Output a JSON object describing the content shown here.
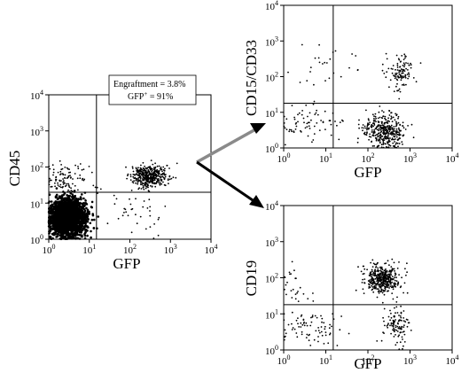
{
  "page_title": "",
  "colors": {
    "ink": "#000000",
    "background": "#ffffff",
    "arrow_main": "#000000",
    "arrow_upper": "#8a8a8a"
  },
  "annotations": {
    "engraftment": "Engraftment = 3.8%",
    "gfp_positive_prefix": "GFP",
    "gfp_positive_sup": "+",
    "gfp_positive_suffix": " = 91%"
  },
  "chart_data": [
    {
      "type": "scatter",
      "id": "cd45-vs-gfp",
      "title": "",
      "xlabel": "GFP",
      "ylabel": "CD45",
      "xscale": "log",
      "yscale": "log",
      "xlim": [
        1,
        10000
      ],
      "ylim": [
        1,
        10000
      ],
      "x_ticks": [
        1,
        10,
        100,
        1000,
        10000
      ],
      "y_ticks": [
        1,
        10,
        100,
        1000,
        10000
      ],
      "gate": {
        "x": 15,
        "y": 20
      },
      "annotation": [
        "Engraftment = 3.8%",
        "GFP+ = 91%"
      ],
      "populations": [
        {
          "label": "GFP- CD45-",
          "x_center": 3,
          "y_center": 4,
          "x_spread_decades": 0.22,
          "y_spread_decades": 0.26,
          "n": 2200
        },
        {
          "label": "GFP+ CD45+",
          "x_center": 300,
          "y_center": 55,
          "x_spread_decades": 0.22,
          "y_spread_decades": 0.15,
          "n": 420
        },
        {
          "label": "GFP- CD45+",
          "x_center": 3,
          "y_center": 45,
          "x_spread_decades": 0.3,
          "y_spread_decades": 0.22,
          "n": 110
        },
        {
          "label": "GFP+ CD45- scatter",
          "x_center": 150,
          "y_center": 5,
          "x_spread_decades": 0.45,
          "y_spread_decades": 0.35,
          "n": 35
        }
      ]
    },
    {
      "type": "scatter",
      "id": "cd15cd33-vs-gfp",
      "title": "",
      "xlabel": "GFP",
      "ylabel": "CD15/CD33",
      "xscale": "log",
      "yscale": "log",
      "xlim": [
        1,
        10000
      ],
      "ylim": [
        1,
        10000
      ],
      "x_ticks": [
        1,
        10,
        100,
        1000,
        10000
      ],
      "y_ticks": [
        1,
        10,
        100,
        1000,
        10000
      ],
      "gate": {
        "x": 15,
        "y": 18
      },
      "populations": [
        {
          "label": "GFP+ CD15/CD33-",
          "x_center": 250,
          "y_center": 3,
          "x_spread_decades": 0.25,
          "y_spread_decades": 0.25,
          "n": 380
        },
        {
          "label": "GFP+ CD15/CD33+",
          "x_center": 600,
          "y_center": 120,
          "x_spread_decades": 0.15,
          "y_spread_decades": 0.25,
          "n": 110
        },
        {
          "label": "GFP- CD15/CD33-",
          "x_center": 4,
          "y_center": 5,
          "x_spread_decades": 0.35,
          "y_spread_decades": 0.3,
          "n": 70
        },
        {
          "label": "GFP- CD15/CD33+",
          "x_center": 10,
          "y_center": 200,
          "x_spread_decades": 0.4,
          "y_spread_decades": 0.35,
          "n": 25
        }
      ]
    },
    {
      "type": "scatter",
      "id": "cd19-vs-gfp",
      "title": "",
      "xlabel": "GFP",
      "ylabel": "CD19",
      "xscale": "log",
      "yscale": "log",
      "xlim": [
        1,
        10000
      ],
      "ylim": [
        1,
        10000
      ],
      "x_ticks": [
        1,
        10,
        100,
        1000,
        10000
      ],
      "y_ticks": [
        1,
        10,
        100,
        1000,
        10000
      ],
      "gate": {
        "x": 15,
        "y": 18
      },
      "populations": [
        {
          "label": "GFP+ CD19+",
          "x_center": 220,
          "y_center": 90,
          "x_spread_decades": 0.2,
          "y_spread_decades": 0.2,
          "n": 420
        },
        {
          "label": "GFP+ CD19-",
          "x_center": 500,
          "y_center": 5,
          "x_spread_decades": 0.15,
          "y_spread_decades": 0.25,
          "n": 110
        },
        {
          "label": "GFP- CD19-",
          "x_center": 4,
          "y_center": 4,
          "x_spread_decades": 0.35,
          "y_spread_decades": 0.3,
          "n": 80
        },
        {
          "label": "GFP- CD19+",
          "x_center": 2,
          "y_center": 60,
          "x_spread_decades": 0.25,
          "y_spread_decades": 0.25,
          "n": 25
        }
      ]
    }
  ]
}
